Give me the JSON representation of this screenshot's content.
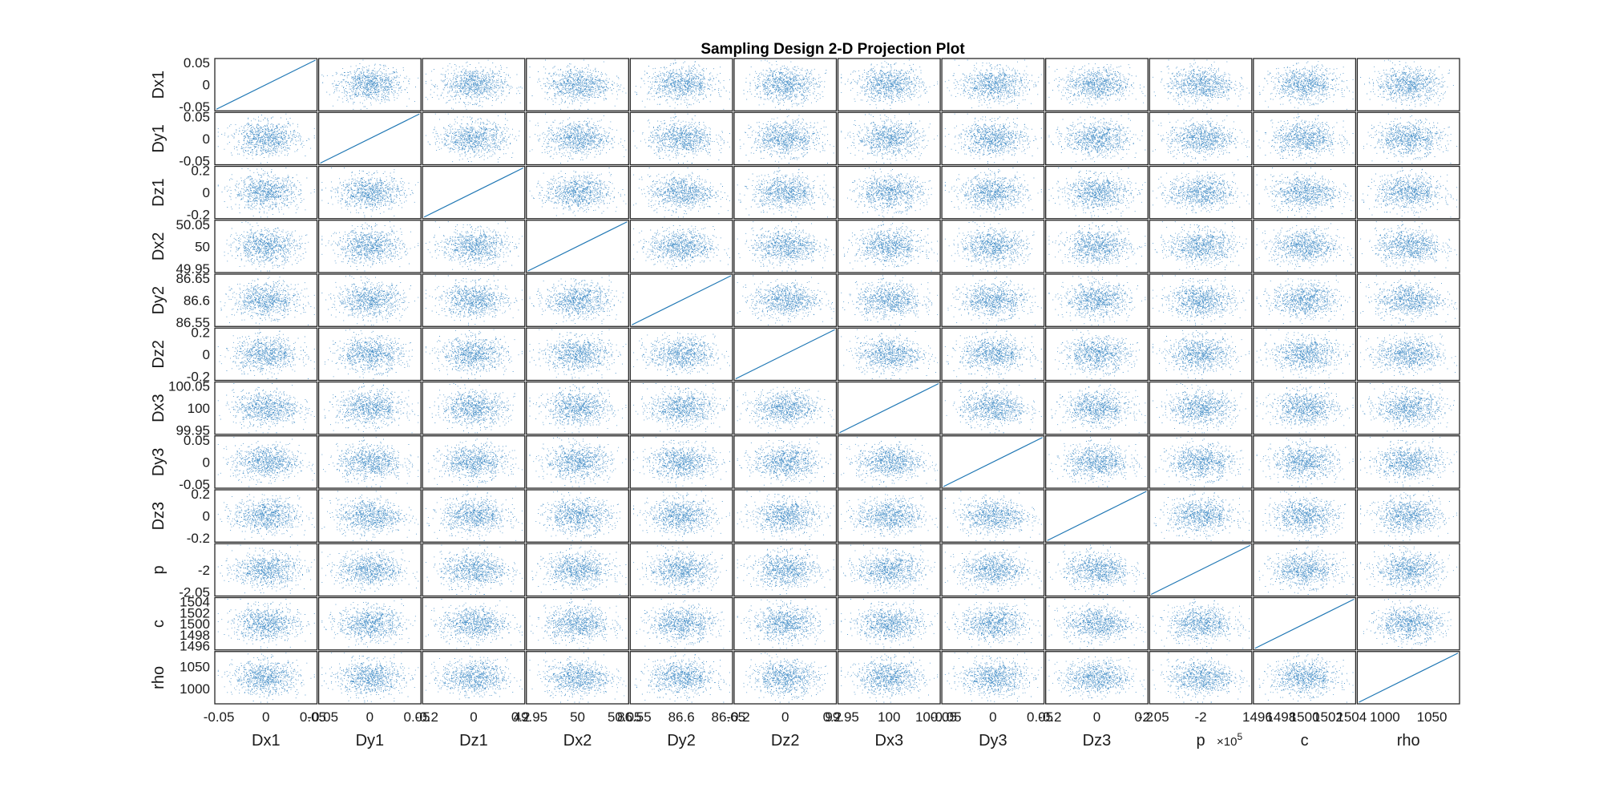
{
  "chart_data": {
    "type": "scatter",
    "title": "Sampling Design 2-D Projection Plot",
    "variables": [
      {
        "name": "Dx1",
        "range": [
          -0.05,
          0.05
        ],
        "ticks": [
          -0.05,
          0,
          0.05
        ],
        "tick_labels": [
          "-0.05",
          "0",
          "0.05"
        ]
      },
      {
        "name": "Dy1",
        "range": [
          -0.05,
          0.05
        ],
        "ticks": [
          -0.05,
          0,
          0.05
        ],
        "tick_labels": [
          "-0.05",
          "0",
          "0.05"
        ]
      },
      {
        "name": "Dz1",
        "range": [
          -0.2,
          0.2
        ],
        "ticks": [
          -0.2,
          0,
          0.2
        ],
        "tick_labels": [
          "-0.2",
          "0",
          "0.2"
        ]
      },
      {
        "name": "Dx2",
        "range": [
          49.95,
          50.05
        ],
        "ticks": [
          49.95,
          50,
          50.05
        ],
        "tick_labels": [
          "49.95",
          "50",
          "50.05"
        ]
      },
      {
        "name": "Dy2",
        "range": [
          86.55,
          86.65
        ],
        "ticks": [
          86.55,
          86.6,
          86.65
        ],
        "tick_labels": [
          "86.55",
          "86.6",
          "86.65"
        ]
      },
      {
        "name": "Dz2",
        "range": [
          -0.2,
          0.2
        ],
        "ticks": [
          -0.2,
          0,
          0.2
        ],
        "tick_labels": [
          "-0.2",
          "0",
          "0.2"
        ]
      },
      {
        "name": "Dx3",
        "range": [
          99.95,
          100.05
        ],
        "ticks": [
          99.95,
          100,
          100.05
        ],
        "tick_labels": [
          "99.95",
          "100",
          "100.05"
        ]
      },
      {
        "name": "Dy3",
        "range": [
          -0.05,
          0.05
        ],
        "ticks": [
          -0.05,
          0,
          0.05
        ],
        "tick_labels": [
          "-0.05",
          "0",
          "0.05"
        ]
      },
      {
        "name": "Dz3",
        "range": [
          -0.2,
          0.2
        ],
        "ticks": [
          -0.2,
          0,
          0.2
        ],
        "tick_labels": [
          "-0.2",
          "0",
          "0.2"
        ]
      },
      {
        "name": "p",
        "range": [
          -205000,
          -195000
        ],
        "ticks": [
          -205000,
          -200000
        ],
        "tick_labels": [
          "-2.05",
          "-2"
        ],
        "exponent_label": "×10",
        "exponent": "5"
      },
      {
        "name": "c",
        "range": [
          1496,
          1504
        ],
        "ticks": [
          1496,
          1498,
          1500,
          1502,
          1504
        ],
        "tick_labels": [
          "1496",
          "1498",
          "1500",
          "1502",
          "1504"
        ]
      },
      {
        "name": "rho",
        "range": [
          975,
          1075
        ],
        "ticks": [
          1000,
          1050
        ],
        "tick_labels": [
          "1000",
          "1050"
        ]
      }
    ],
    "samples_per_panel": 900,
    "diagonal": "identity line",
    "grid": false,
    "legend": "none",
    "colors": {
      "points": "#2b7fc0",
      "axes": "#262626",
      "diagonal": "#1f77b4"
    }
  }
}
